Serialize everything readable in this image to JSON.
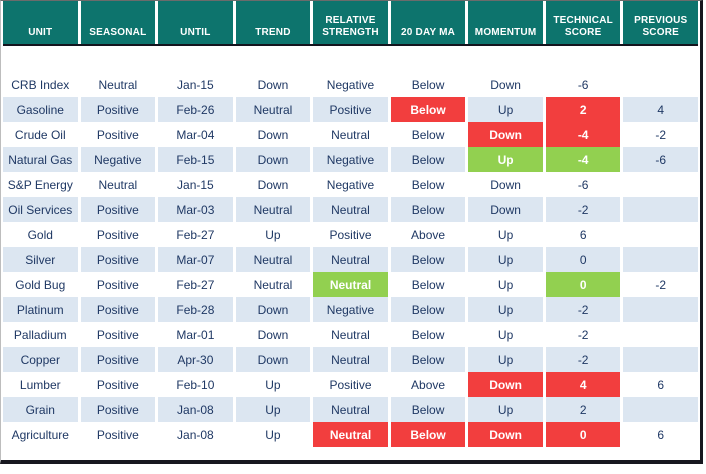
{
  "chart_data": {
    "type": "table",
    "title": "",
    "columns": [
      "UNIT",
      "SEASONAL",
      "UNTIL",
      "TREND",
      "RELATIVE STRENGTH",
      "20 DAY MA",
      "MOMENTUM",
      "TECHNICAL SCORE",
      "PREVIOUS SCORE"
    ],
    "rows": [
      {
        "cells": [
          {
            "text": "CRB Index",
            "bg": "none"
          },
          {
            "text": "Neutral",
            "bg": "none"
          },
          {
            "text": "Jan-15",
            "bg": "none"
          },
          {
            "text": "Down",
            "bg": "none"
          },
          {
            "text": "Negative",
            "bg": "none"
          },
          {
            "text": "Below",
            "bg": "none"
          },
          {
            "text": "Down",
            "bg": "none"
          },
          {
            "text": "-6",
            "bg": "none"
          },
          {
            "text": "",
            "bg": "none"
          }
        ]
      },
      {
        "cells": [
          {
            "text": "Gasoline",
            "bg": "none"
          },
          {
            "text": "Positive",
            "bg": "none"
          },
          {
            "text": "Feb-26",
            "bg": "none"
          },
          {
            "text": "Neutral",
            "bg": "none"
          },
          {
            "text": "Positive",
            "bg": "none"
          },
          {
            "text": "Below",
            "bg": "red"
          },
          {
            "text": "Up",
            "bg": "none"
          },
          {
            "text": "2",
            "bg": "red"
          },
          {
            "text": "4",
            "bg": "none"
          }
        ]
      },
      {
        "cells": [
          {
            "text": "Crude Oil",
            "bg": "none"
          },
          {
            "text": "Positive",
            "bg": "none"
          },
          {
            "text": "Mar-04",
            "bg": "none"
          },
          {
            "text": "Down",
            "bg": "none"
          },
          {
            "text": "Neutral",
            "bg": "none"
          },
          {
            "text": "Below",
            "bg": "none"
          },
          {
            "text": "Down",
            "bg": "red"
          },
          {
            "text": "-4",
            "bg": "red"
          },
          {
            "text": "-2",
            "bg": "none"
          }
        ]
      },
      {
        "cells": [
          {
            "text": "Natural Gas",
            "bg": "none"
          },
          {
            "text": "Negative",
            "bg": "none"
          },
          {
            "text": "Feb-15",
            "bg": "none"
          },
          {
            "text": "Down",
            "bg": "none"
          },
          {
            "text": "Negative",
            "bg": "none"
          },
          {
            "text": "Below",
            "bg": "none"
          },
          {
            "text": "Up",
            "bg": "green"
          },
          {
            "text": "-4",
            "bg": "green"
          },
          {
            "text": "-6",
            "bg": "none"
          }
        ]
      },
      {
        "cells": [
          {
            "text": "S&P Energy",
            "bg": "none"
          },
          {
            "text": "Neutral",
            "bg": "none"
          },
          {
            "text": "Jan-15",
            "bg": "none"
          },
          {
            "text": "Down",
            "bg": "none"
          },
          {
            "text": "Negative",
            "bg": "none"
          },
          {
            "text": "Below",
            "bg": "none"
          },
          {
            "text": "Down",
            "bg": "none"
          },
          {
            "text": "-6",
            "bg": "none"
          },
          {
            "text": "",
            "bg": "none"
          }
        ]
      },
      {
        "cells": [
          {
            "text": "Oil Services",
            "bg": "none"
          },
          {
            "text": "Positive",
            "bg": "none"
          },
          {
            "text": "Mar-03",
            "bg": "none"
          },
          {
            "text": "Neutral",
            "bg": "none"
          },
          {
            "text": "Neutral",
            "bg": "none"
          },
          {
            "text": "Below",
            "bg": "none"
          },
          {
            "text": "Down",
            "bg": "none"
          },
          {
            "text": "-2",
            "bg": "none"
          },
          {
            "text": "",
            "bg": "none"
          }
        ]
      },
      {
        "cells": [
          {
            "text": "Gold",
            "bg": "none"
          },
          {
            "text": "Positive",
            "bg": "none"
          },
          {
            "text": "Feb-27",
            "bg": "none"
          },
          {
            "text": "Up",
            "bg": "none"
          },
          {
            "text": "Positive",
            "bg": "none"
          },
          {
            "text": "Above",
            "bg": "none"
          },
          {
            "text": "Up",
            "bg": "none"
          },
          {
            "text": "6",
            "bg": "none"
          },
          {
            "text": "",
            "bg": "none"
          }
        ]
      },
      {
        "cells": [
          {
            "text": "Silver",
            "bg": "none"
          },
          {
            "text": "Positive",
            "bg": "none"
          },
          {
            "text": "Mar-07",
            "bg": "none"
          },
          {
            "text": "Neutral",
            "bg": "none"
          },
          {
            "text": "Neutral",
            "bg": "none"
          },
          {
            "text": "Below",
            "bg": "none"
          },
          {
            "text": "Up",
            "bg": "none"
          },
          {
            "text": "0",
            "bg": "none"
          },
          {
            "text": "",
            "bg": "none"
          }
        ]
      },
      {
        "cells": [
          {
            "text": "Gold Bug",
            "bg": "none"
          },
          {
            "text": "Positive",
            "bg": "none"
          },
          {
            "text": "Feb-27",
            "bg": "none"
          },
          {
            "text": "Neutral",
            "bg": "none"
          },
          {
            "text": "Neutral",
            "bg": "green"
          },
          {
            "text": "Below",
            "bg": "none"
          },
          {
            "text": "Up",
            "bg": "none"
          },
          {
            "text": "0",
            "bg": "green"
          },
          {
            "text": "-2",
            "bg": "none"
          }
        ]
      },
      {
        "cells": [
          {
            "text": "Platinum",
            "bg": "none"
          },
          {
            "text": "Positive",
            "bg": "none"
          },
          {
            "text": "Feb-28",
            "bg": "none"
          },
          {
            "text": "Down",
            "bg": "none"
          },
          {
            "text": "Negative",
            "bg": "none"
          },
          {
            "text": "Below",
            "bg": "none"
          },
          {
            "text": "Up",
            "bg": "none"
          },
          {
            "text": "-2",
            "bg": "none"
          },
          {
            "text": "",
            "bg": "none"
          }
        ]
      },
      {
        "cells": [
          {
            "text": "Palladium",
            "bg": "none"
          },
          {
            "text": "Positive",
            "bg": "none"
          },
          {
            "text": "Mar-01",
            "bg": "none"
          },
          {
            "text": "Down",
            "bg": "none"
          },
          {
            "text": "Neutral",
            "bg": "none"
          },
          {
            "text": "Below",
            "bg": "none"
          },
          {
            "text": "Up",
            "bg": "none"
          },
          {
            "text": "-2",
            "bg": "none"
          },
          {
            "text": "",
            "bg": "none"
          }
        ]
      },
      {
        "cells": [
          {
            "text": "Copper",
            "bg": "none"
          },
          {
            "text": "Positive",
            "bg": "none"
          },
          {
            "text": "Apr-30",
            "bg": "none"
          },
          {
            "text": "Down",
            "bg": "none"
          },
          {
            "text": "Neutral",
            "bg": "none"
          },
          {
            "text": "Below",
            "bg": "none"
          },
          {
            "text": "Up",
            "bg": "none"
          },
          {
            "text": "-2",
            "bg": "none"
          },
          {
            "text": "",
            "bg": "none"
          }
        ]
      },
      {
        "cells": [
          {
            "text": "Lumber",
            "bg": "none"
          },
          {
            "text": "Positive",
            "bg": "none"
          },
          {
            "text": "Feb-10",
            "bg": "none"
          },
          {
            "text": "Up",
            "bg": "none"
          },
          {
            "text": "Positive",
            "bg": "none"
          },
          {
            "text": "Above",
            "bg": "none"
          },
          {
            "text": "Down",
            "bg": "red"
          },
          {
            "text": "4",
            "bg": "red"
          },
          {
            "text": "6",
            "bg": "none"
          }
        ]
      },
      {
        "cells": [
          {
            "text": "Grain",
            "bg": "none"
          },
          {
            "text": "Positive",
            "bg": "none"
          },
          {
            "text": "Jan-08",
            "bg": "none"
          },
          {
            "text": "Up",
            "bg": "none"
          },
          {
            "text": "Neutral",
            "bg": "none"
          },
          {
            "text": "Below",
            "bg": "none"
          },
          {
            "text": "Up",
            "bg": "none"
          },
          {
            "text": "2",
            "bg": "none"
          },
          {
            "text": "",
            "bg": "none"
          }
        ]
      },
      {
        "cells": [
          {
            "text": "Agriculture",
            "bg": "none"
          },
          {
            "text": "Positive",
            "bg": "none"
          },
          {
            "text": "Jan-08",
            "bg": "none"
          },
          {
            "text": "Up",
            "bg": "none"
          },
          {
            "text": "Neutral",
            "bg": "red"
          },
          {
            "text": "Below",
            "bg": "red"
          },
          {
            "text": "Down",
            "bg": "red"
          },
          {
            "text": "0",
            "bg": "red"
          },
          {
            "text": "6",
            "bg": "none"
          }
        ]
      }
    ],
    "layout": {
      "legend": "none",
      "grid": "column-gaps-only",
      "row_striping": "alternate starting white"
    }
  },
  "colors": {
    "header_bg": "#0d746d",
    "header_text": "#ffffff",
    "row_alt": "#dce6f1",
    "row_base": "#ffffff",
    "negative": "#f23e3e",
    "positive": "#92d050",
    "body_text": "#1f3864",
    "frame_border": "#17171f"
  }
}
